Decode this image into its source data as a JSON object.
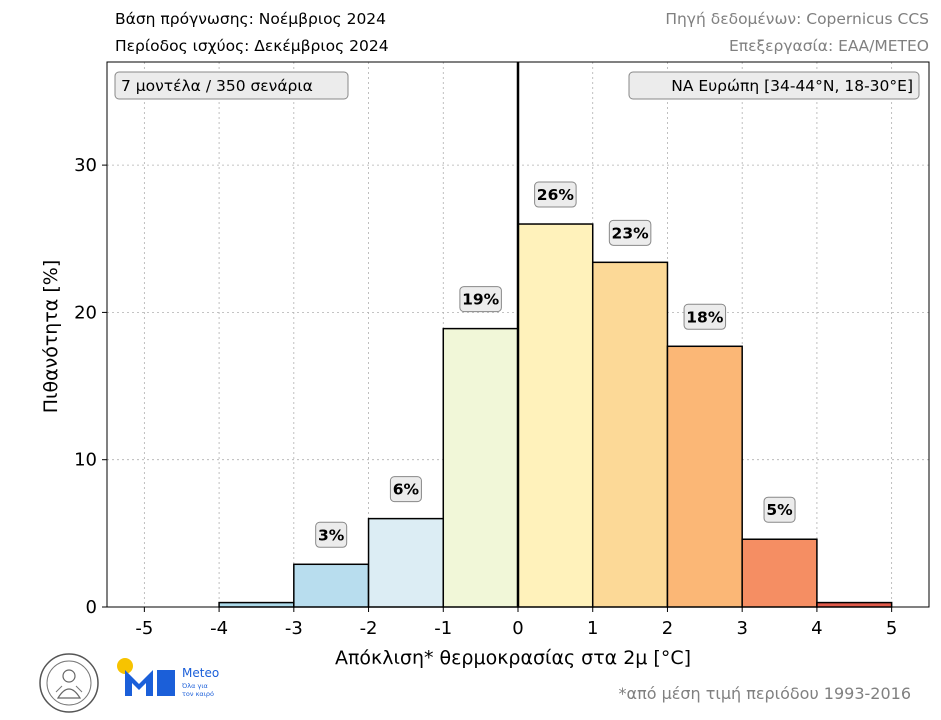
{
  "header": {
    "forecast_base": "Βάση πρόγνωσης: Νοέμβριος 2024",
    "valid_period": "Περίοδος ισχύος: Δεκέμβριος 2024",
    "data_source": "Πηγή δεδομένων: Copernicus CCS",
    "processing": "Επεξεργασία: ΕΑΑ/METEO"
  },
  "footnote": "*από μέση τιμή περιόδου 1993-2016",
  "logos": {
    "meteo_name": "Meteo",
    "meteo_tagline_1": "Όλα για",
    "meteo_tagline_2": "τον καιρό"
  },
  "chart_data": {
    "type": "bar",
    "annotation_left": "7 μοντέλα / 350 σενάρια",
    "annotation_right": "ΝΑ Ευρώπη [34-44°N, 18-30°E]",
    "xlabel": "Απόκλιση* θερμοκρασίας στα 2μ [°C]",
    "ylabel": "Πιθανότητα [%]",
    "xlim": [
      -5.5,
      5.5
    ],
    "ylim": [
      0,
      37
    ],
    "xticks": [
      "-5",
      "-4",
      "-3",
      "-2",
      "-1",
      "0",
      "1",
      "2",
      "3",
      "4",
      "5"
    ],
    "yticks": [
      "0",
      "10",
      "20",
      "30"
    ],
    "grid": true,
    "bins": [
      {
        "from": -4,
        "to": -3,
        "value": 0.3,
        "color": "#abd9e9",
        "label": ""
      },
      {
        "from": -3,
        "to": -2,
        "value": 2.9,
        "color": "#b8ddee",
        "label": "3%"
      },
      {
        "from": -2,
        "to": -1,
        "value": 6.0,
        "color": "#dcedf4",
        "label": "6%"
      },
      {
        "from": -1,
        "to": 0,
        "value": 18.9,
        "color": "#f1f7d8",
        "label": "19%"
      },
      {
        "from": 0,
        "to": 1,
        "value": 26.0,
        "color": "#fff2bb",
        "label": "26%"
      },
      {
        "from": 1,
        "to": 2,
        "value": 23.4,
        "color": "#fcd997",
        "label": "23%"
      },
      {
        "from": 2,
        "to": 3,
        "value": 17.7,
        "color": "#fbb776",
        "label": "18%"
      },
      {
        "from": 3,
        "to": 4,
        "value": 4.6,
        "color": "#f58e63",
        "label": "5%"
      },
      {
        "from": 4,
        "to": 5,
        "value": 0.3,
        "color": "#e05a4a",
        "label": ""
      }
    ]
  }
}
